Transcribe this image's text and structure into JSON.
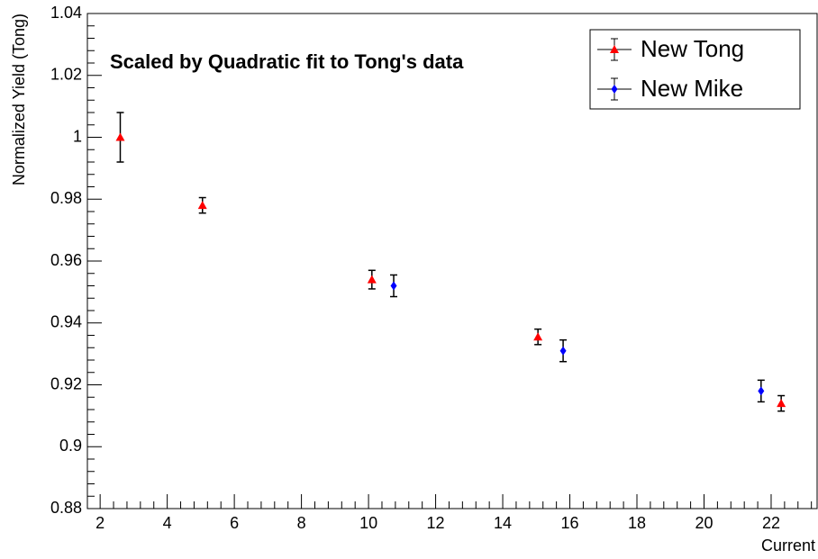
{
  "chart_data": {
    "type": "scatter",
    "title": "Scaled by Quadratic fit to Tong's data",
    "x_label": "Current",
    "y_label": "Normalized Yield (Tong)",
    "xlim": [
      1.62,
      23.37
    ],
    "xticks": [
      2,
      4,
      6,
      8,
      10,
      12,
      14,
      16,
      18,
      20,
      22
    ],
    "ylim": [
      0.88,
      1.04
    ],
    "yticks": [
      0.88,
      0.9,
      0.92,
      0.94,
      0.96,
      0.98,
      1,
      1.02,
      1.04
    ],
    "legend": "upper right",
    "series": [
      {
        "name": "New Tong",
        "color": "#ff0000",
        "marker": "triangle",
        "x": [
          2.6,
          5.05,
          10.1,
          15.05,
          22.3
        ],
        "values": [
          1.0,
          0.978,
          0.954,
          0.9355,
          0.914
        ],
        "errors": [
          0.008,
          0.0025,
          0.003,
          0.0025,
          0.0025
        ]
      },
      {
        "name": "New Mike",
        "color": "#0000ff",
        "marker": "diamond",
        "x": [
          10.75,
          15.8,
          21.7
        ],
        "values": [
          0.952,
          0.931,
          0.918
        ],
        "errors": [
          0.0035,
          0.0035,
          0.0035
        ]
      }
    ]
  }
}
